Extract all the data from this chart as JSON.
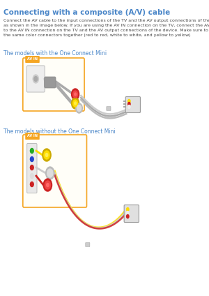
{
  "title": "Connecting with a composite (A/V) cable",
  "body_text": "Connect the AV cable to the input connections of the TV and the AV output connections of the device\nas shown in the image below. If you are using the AV IN connection on the TV, connect the AV cable\nto the AV IN connection on the TV and the AV output connections of the device. Make sure to connect\nthe same color connectors together (red to red, white to white, and yellow to yellow)",
  "section1": "The models with the One Connect Mini",
  "section2": "The models without the One Connect Mini",
  "title_color": "#4a86c8",
  "section_color": "#4a86c8",
  "body_color": "#444444",
  "bg_color": "#ffffff",
  "border_color": "#f5a623",
  "label_bg": "#f5a623",
  "label_text": "AV IN",
  "label_color": "#ffffff",
  "cable_color": "#c8c8c8",
  "cable_shadow": "#aaaaaa"
}
